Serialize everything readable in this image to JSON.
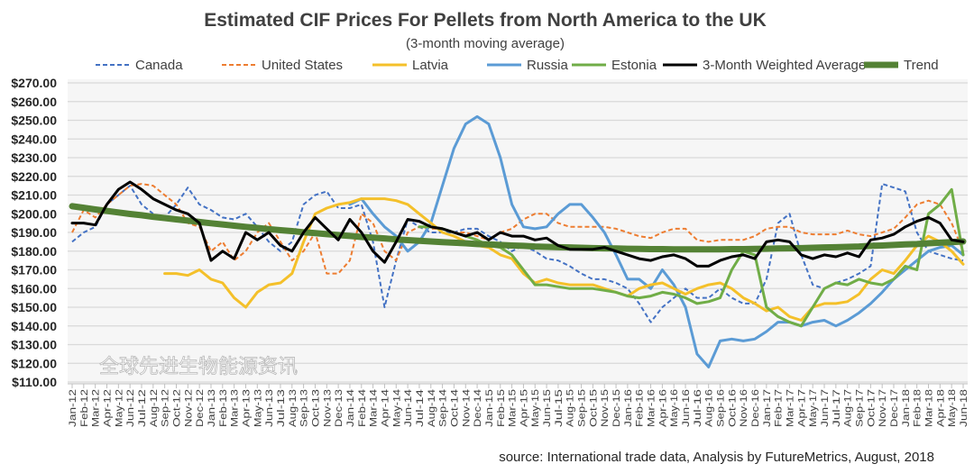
{
  "chart_data": {
    "type": "line",
    "title": "Estimated CIF Prices For Pellets from North America to the UK",
    "subtitle": "(3-month moving average)",
    "source": "source: International trade data, Analysis by FutureMetrics, August, 2018",
    "watermark": "全球先进生物能源资讯",
    "ylim": [
      110,
      270
    ],
    "yticks": [
      "$110.00",
      "$120.00",
      "$130.00",
      "$140.00",
      "$150.00",
      "$160.00",
      "$170.00",
      "$180.00",
      "$190.00",
      "$200.00",
      "$210.00",
      "$220.00",
      "$230.00",
      "$240.00",
      "$250.00",
      "$260.00",
      "$270.00"
    ],
    "grid": true,
    "legend_position": "top",
    "categories": [
      "Jan-12",
      "Feb-12",
      "Mar-12",
      "Apr-12",
      "May-12",
      "Jun-12",
      "Jul-12",
      "Aug-12",
      "Sep-12",
      "Oct-12",
      "Nov-12",
      "Dec-12",
      "Jan-13",
      "Feb-13",
      "Mar-13",
      "Apr-13",
      "May-13",
      "Jun-13",
      "Jul-13",
      "Aug-13",
      "Sep-13",
      "Oct-13",
      "Nov-13",
      "Dec-13",
      "Jan-14",
      "Feb-14",
      "Mar-14",
      "Apr-14",
      "May-14",
      "Jun-14",
      "Jul-14",
      "Aug-14",
      "Sep-14",
      "Oct-14",
      "Nov-14",
      "Dec-14",
      "Jan-15",
      "Feb-15",
      "Mar-15",
      "Apr-15",
      "May-15",
      "Jun-15",
      "Jul-15",
      "Aug-15",
      "Sep-15",
      "Oct-15",
      "Nov-15",
      "Dec-15",
      "Jan-16",
      "Feb-16",
      "Mar-16",
      "Apr-16",
      "May-16",
      "Jun-16",
      "Jul-16",
      "Aug-16",
      "Sep-16",
      "Oct-16",
      "Nov-16",
      "Dec-16",
      "Jan-17",
      "Feb-17",
      "Mar-17",
      "Apr-17",
      "May-17",
      "Jun-17",
      "Jul-17",
      "Aug-17",
      "Sep-17",
      "Oct-17",
      "Nov-17",
      "Dec-17",
      "Jan-18",
      "Feb-18",
      "Mar-18",
      "Apr-18",
      "May-18",
      "Jun-18"
    ],
    "series": [
      {
        "name": "Canada",
        "color": "#4472c4",
        "dash": true,
        "width": 2,
        "values": [
          185,
          190,
          193,
          205,
          210,
          215,
          205,
          200,
          198,
          205,
          214,
          205,
          202,
          198,
          197,
          200,
          193,
          185,
          180,
          185,
          205,
          210,
          212,
          203,
          203,
          205,
          185,
          150,
          175,
          197,
          193,
          190,
          190,
          190,
          192,
          192,
          188,
          185,
          180,
          183,
          180,
          176,
          175,
          172,
          168,
          165,
          165,
          163,
          160,
          152,
          142,
          150,
          155,
          160,
          155,
          155,
          160,
          155,
          152,
          152,
          165,
          195,
          200,
          178,
          162,
          160,
          163,
          165,
          168,
          172,
          216,
          214,
          212,
          190,
          180,
          178,
          176,
          175
        ]
      },
      {
        "name": "United States",
        "color": "#ed7d31",
        "dash": true,
        "width": 2,
        "values": [
          190,
          202,
          198,
          205,
          210,
          215,
          216,
          215,
          210,
          205,
          195,
          193,
          180,
          185,
          175,
          180,
          190,
          195,
          185,
          175,
          180,
          190,
          168,
          168,
          175,
          200,
          195,
          180,
          175,
          190,
          193,
          192,
          192,
          190,
          190,
          188,
          186,
          190,
          192,
          197,
          200,
          200,
          195,
          193,
          193,
          193,
          193,
          192,
          190,
          188,
          187,
          190,
          192,
          192,
          186,
          185,
          186,
          186,
          186,
          188,
          192,
          193,
          193,
          190,
          189,
          189,
          189,
          191,
          189,
          188,
          190,
          192,
          198,
          205,
          207,
          205,
          195,
          180
        ]
      },
      {
        "name": "Latvia",
        "color": "#f4c02a",
        "dash": false,
        "width": 3,
        "values": [
          null,
          null,
          null,
          null,
          null,
          null,
          null,
          null,
          168,
          168,
          167,
          170,
          165,
          163,
          155,
          150,
          158,
          162,
          163,
          168,
          185,
          200,
          203,
          205,
          206,
          208,
          208,
          208,
          207,
          205,
          200,
          195,
          190,
          188,
          185,
          183,
          182,
          178,
          176,
          168,
          163,
          165,
          163,
          162,
          162,
          162,
          160,
          158,
          156,
          160,
          162,
          163,
          160,
          157,
          160,
          162,
          163,
          160,
          155,
          152,
          148,
          150,
          145,
          143,
          150,
          152,
          152,
          153,
          157,
          165,
          170,
          168,
          175,
          183,
          188,
          185,
          180,
          173
        ]
      },
      {
        "name": "Russia",
        "color": "#5b9bd5",
        "dash": false,
        "width": 3,
        "values": [
          null,
          null,
          null,
          null,
          null,
          null,
          null,
          null,
          null,
          null,
          null,
          null,
          null,
          null,
          null,
          null,
          null,
          null,
          null,
          null,
          null,
          null,
          null,
          null,
          205,
          208,
          200,
          193,
          188,
          180,
          185,
          195,
          215,
          235,
          248,
          252,
          248,
          230,
          205,
          193,
          192,
          193,
          200,
          205,
          205,
          198,
          190,
          178,
          165,
          165,
          160,
          170,
          162,
          150,
          125,
          118,
          132,
          133,
          132,
          133,
          137,
          142,
          142,
          140,
          142,
          143,
          140,
          143,
          147,
          152,
          158,
          165,
          170,
          175,
          180,
          182,
          183,
          178
        ]
      },
      {
        "name": "Estonia",
        "color": "#70ad47",
        "dash": false,
        "width": 3,
        "values": [
          null,
          null,
          null,
          null,
          null,
          null,
          null,
          null,
          null,
          null,
          null,
          null,
          null,
          null,
          null,
          null,
          null,
          null,
          null,
          null,
          null,
          null,
          null,
          null,
          null,
          null,
          null,
          null,
          null,
          null,
          193,
          193,
          192,
          190,
          188,
          186,
          183,
          182,
          178,
          170,
          162,
          162,
          161,
          160,
          160,
          160,
          159,
          158,
          156,
          155,
          156,
          158,
          157,
          155,
          152,
          153,
          155,
          170,
          180,
          178,
          150,
          145,
          142,
          140,
          150,
          160,
          163,
          162,
          165,
          163,
          162,
          165,
          172,
          170,
          200,
          205,
          213,
          178
        ]
      },
      {
        "name": "3-Month Weighted Average",
        "color": "#000000",
        "dash": false,
        "width": 3,
        "values": [
          195,
          195,
          194,
          205,
          213,
          217,
          213,
          208,
          205,
          202,
          200,
          195,
          175,
          180,
          176,
          190,
          186,
          190,
          183,
          180,
          190,
          198,
          192,
          186,
          197,
          190,
          180,
          174,
          185,
          197,
          196,
          193,
          192,
          190,
          188,
          190,
          186,
          190,
          188,
          188,
          186,
          187,
          183,
          181,
          181,
          181,
          182,
          180,
          178,
          176,
          175,
          177,
          178,
          176,
          172,
          172,
          175,
          177,
          178,
          176,
          185,
          186,
          185,
          178,
          176,
          178,
          177,
          179,
          177,
          186,
          187,
          189,
          193,
          196,
          198,
          195,
          186,
          185
        ]
      },
      {
        "name": "Trend",
        "color": "#548235",
        "dash": false,
        "width": 7,
        "values": [
          204.0,
          203.2,
          202.3,
          201.5,
          200.7,
          199.9,
          199.2,
          198.4,
          197.7,
          197.0,
          196.3,
          195.6,
          194.9,
          194.3,
          193.6,
          193.0,
          192.4,
          191.8,
          191.2,
          190.7,
          190.1,
          189.6,
          189.1,
          188.6,
          188.1,
          187.6,
          187.2,
          186.8,
          186.3,
          185.9,
          185.5,
          185.2,
          184.8,
          184.5,
          184.2,
          183.8,
          183.6,
          183.3,
          183.0,
          182.8,
          182.5,
          182.3,
          182.1,
          182.0,
          181.8,
          181.6,
          181.5,
          181.4,
          181.3,
          181.2,
          181.1,
          181.1,
          181.0,
          181.0,
          181.0,
          181.0,
          181.0,
          181.1,
          181.1,
          181.2,
          181.3,
          181.4,
          181.5,
          181.6,
          181.8,
          182.0,
          182.1,
          182.3,
          182.5,
          182.8,
          183.0,
          183.3,
          183.6,
          183.8,
          184.2,
          184.5,
          184.8,
          185.2
        ]
      }
    ]
  }
}
